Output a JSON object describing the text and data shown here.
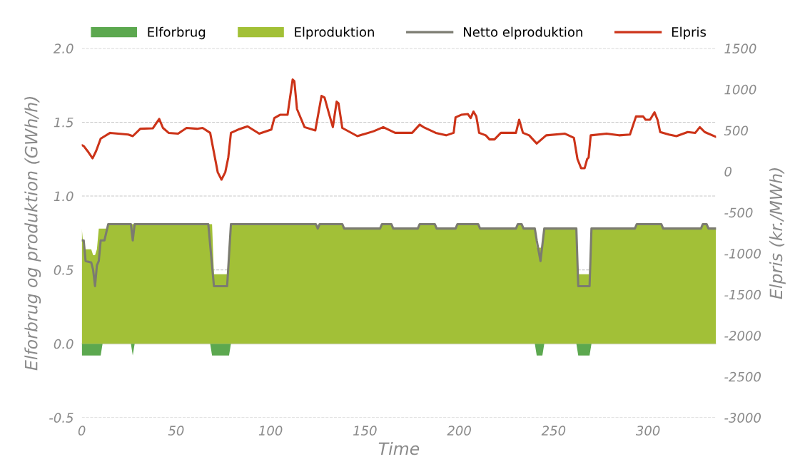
{
  "chart_data": {
    "type": "area",
    "xlabel": "Time",
    "ylabel": "Elforbrug og produktion (GWh/h)",
    "y2label": "Elpris (kr./MWh)",
    "xlim": [
      0,
      336
    ],
    "xticks": [
      0,
      50,
      100,
      150,
      200,
      250,
      300
    ],
    "ylim": [
      -0.5,
      2.0
    ],
    "yticks": [
      {
        "value": -0.5,
        "label": "-0.5"
      },
      {
        "value": 0,
        "label": "0.0"
      },
      {
        "value": 0.5,
        "label": "0.5"
      },
      {
        "value": 1.0,
        "label": "1.0"
      },
      {
        "value": 1.5,
        "label": "1.5"
      },
      {
        "value": 2.0,
        "label": "2.0"
      }
    ],
    "y2lim": [
      -3000,
      1500
    ],
    "y2ticks": [
      -3000,
      -2500,
      -2000,
      -1500,
      -1000,
      -500,
      0,
      500,
      1000,
      1500
    ],
    "grid": "y",
    "legend": "top",
    "series": [
      {
        "name": "Elforbrug",
        "color": "#5ca84f",
        "x": [
          0,
          10,
          11,
          26,
          27,
          28,
          68,
          69,
          78,
          79,
          240,
          241,
          244,
          245,
          262,
          263,
          269,
          270,
          336
        ],
        "values": [
          -0.08,
          -0.08,
          0,
          0,
          -0.08,
          0,
          0,
          -0.08,
          -0.08,
          0,
          0,
          -0.08,
          -0.08,
          0,
          0,
          -0.08,
          -0.08,
          0,
          0
        ]
      },
      {
        "name": "Elproduktion",
        "color": "#a2c037",
        "x": [
          0,
          1,
          5,
          6,
          7,
          8,
          9,
          13,
          14,
          69,
          70,
          77,
          79,
          124,
          125,
          126,
          138,
          139,
          158,
          159,
          164,
          165,
          178,
          179,
          187,
          188,
          198,
          199,
          210,
          211,
          230,
          231,
          233,
          234,
          240,
          241,
          244,
          245,
          262,
          263,
          269,
          270,
          293,
          294,
          307,
          308,
          328,
          329,
          331,
          332,
          336
        ],
        "values": [
          0.78,
          0.64,
          0.64,
          0.6,
          0.6,
          0.64,
          0.78,
          0.78,
          0.81,
          0.81,
          0.47,
          0.47,
          0.81,
          0.81,
          0.78,
          0.81,
          0.81,
          0.78,
          0.78,
          0.81,
          0.81,
          0.78,
          0.78,
          0.81,
          0.81,
          0.78,
          0.78,
          0.81,
          0.81,
          0.78,
          0.78,
          0.81,
          0.81,
          0.78,
          0.78,
          0.65,
          0.65,
          0.78,
          0.78,
          0.47,
          0.47,
          0.78,
          0.78,
          0.81,
          0.81,
          0.78,
          0.78,
          0.81,
          0.81,
          0.78,
          0.78
        ]
      },
      {
        "name": "Netto elproduktion",
        "type": "line",
        "color": "#7b7b70",
        "x": [
          0,
          1,
          2,
          5,
          6,
          7,
          8,
          9,
          10,
          12,
          14,
          26,
          27,
          28,
          67,
          70,
          77,
          79,
          124,
          125,
          126,
          138,
          139,
          158,
          159,
          164,
          165,
          178,
          179,
          187,
          188,
          198,
          199,
          210,
          211,
          230,
          231,
          233,
          234,
          240,
          241,
          243,
          245,
          262,
          263,
          269,
          270,
          293,
          294,
          307,
          308,
          328,
          329,
          331,
          332,
          336
        ],
        "values": [
          0.7,
          0.7,
          0.56,
          0.55,
          0.5,
          0.39,
          0.53,
          0.56,
          0.7,
          0.7,
          0.81,
          0.81,
          0.7,
          0.81,
          0.81,
          0.39,
          0.39,
          0.81,
          0.81,
          0.78,
          0.81,
          0.81,
          0.78,
          0.78,
          0.81,
          0.81,
          0.78,
          0.78,
          0.81,
          0.81,
          0.78,
          0.78,
          0.81,
          0.81,
          0.78,
          0.78,
          0.81,
          0.81,
          0.78,
          0.78,
          0.7,
          0.56,
          0.78,
          0.78,
          0.39,
          0.39,
          0.78,
          0.78,
          0.81,
          0.81,
          0.78,
          0.78,
          0.81,
          0.81,
          0.78,
          0.78
        ]
      },
      {
        "name": "Elpris",
        "type": "line",
        "axis": "y2",
        "color": "#cc3318",
        "x": [
          0,
          1,
          3,
          5.7,
          7.6,
          10,
          15,
          24.6,
          27,
          31,
          37.6,
          41,
          43,
          46,
          51,
          55.5,
          61,
          64,
          68,
          72,
          74,
          76,
          77.6,
          79,
          82.8,
          87.8,
          94,
          100.4,
          102,
          105,
          109,
          111.7,
          112.6,
          114,
          118,
          123.7,
          127,
          128.6,
          131,
          133,
          135,
          136,
          138,
          146,
          154.6,
          159.7,
          166,
          175,
          179,
          181,
          187.5,
          193,
          197,
          198,
          201,
          204.5,
          206,
          207.5,
          209,
          210.5,
          214,
          216,
          218.6,
          222,
          230,
          231.7,
          233.7,
          237,
          241,
          246,
          256,
          260.7,
          262.6,
          264.5,
          266.4,
          267.7,
          268.5,
          269.6,
          278,
          284.6,
          290.4,
          293.6,
          297.4,
          298.7,
          301,
          303.4,
          305,
          306.4,
          311,
          315,
          321,
          325,
          327.4,
          330,
          336
        ],
        "values": [
          320,
          310,
          250,
          160,
          250,
          400,
          470,
          450,
          430,
          520,
          525,
          640,
          530,
          470,
          460,
          530,
          520,
          530,
          470,
          -10,
          -100,
          -10,
          170,
          470,
          510,
          550,
          460,
          510,
          650,
          690,
          690,
          1120,
          1100,
          760,
          540,
          500,
          920,
          900,
          700,
          540,
          850,
          830,
          530,
          430,
          490,
          540,
          470,
          470,
          570,
          540,
          470,
          440,
          470,
          660,
          690,
          700,
          650,
          730,
          670,
          470,
          440,
          390,
          390,
          470,
          470,
          630,
          470,
          440,
          340,
          440,
          460,
          410,
          150,
          40,
          40,
          150,
          170,
          440,
          460,
          440,
          450,
          670,
          670,
          630,
          630,
          720,
          630,
          480,
          450,
          430,
          480,
          470,
          540,
          480,
          420
        ]
      }
    ]
  }
}
